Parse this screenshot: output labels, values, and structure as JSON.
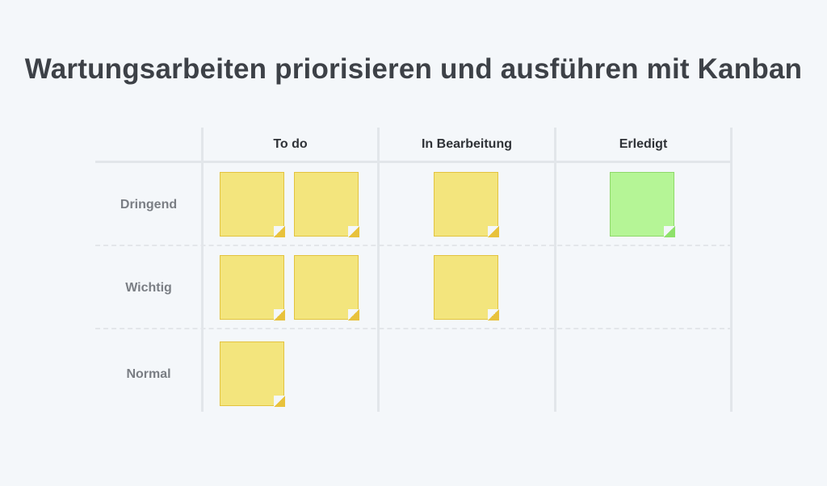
{
  "title": "Wartungsarbeiten priorisieren und ausführen mit Kanban",
  "columns": [
    "To do",
    "In Bearbeitung",
    "Erledigt"
  ],
  "rows": [
    "Dringend",
    "Wichtig",
    "Normal"
  ],
  "cards": {
    "dringend": {
      "todo": 2,
      "in_bearbeitung": 1,
      "erledigt": 1
    },
    "wichtig": {
      "todo": 2,
      "in_bearbeitung": 1,
      "erledigt": 0
    },
    "normal": {
      "todo": 1,
      "in_bearbeitung": 0,
      "erledigt": 0
    }
  },
  "colors": {
    "background": "#f4f7fa",
    "card_yellow": "#f3e57d",
    "card_green": "#b5f596",
    "grid": "#e2e6ea"
  }
}
